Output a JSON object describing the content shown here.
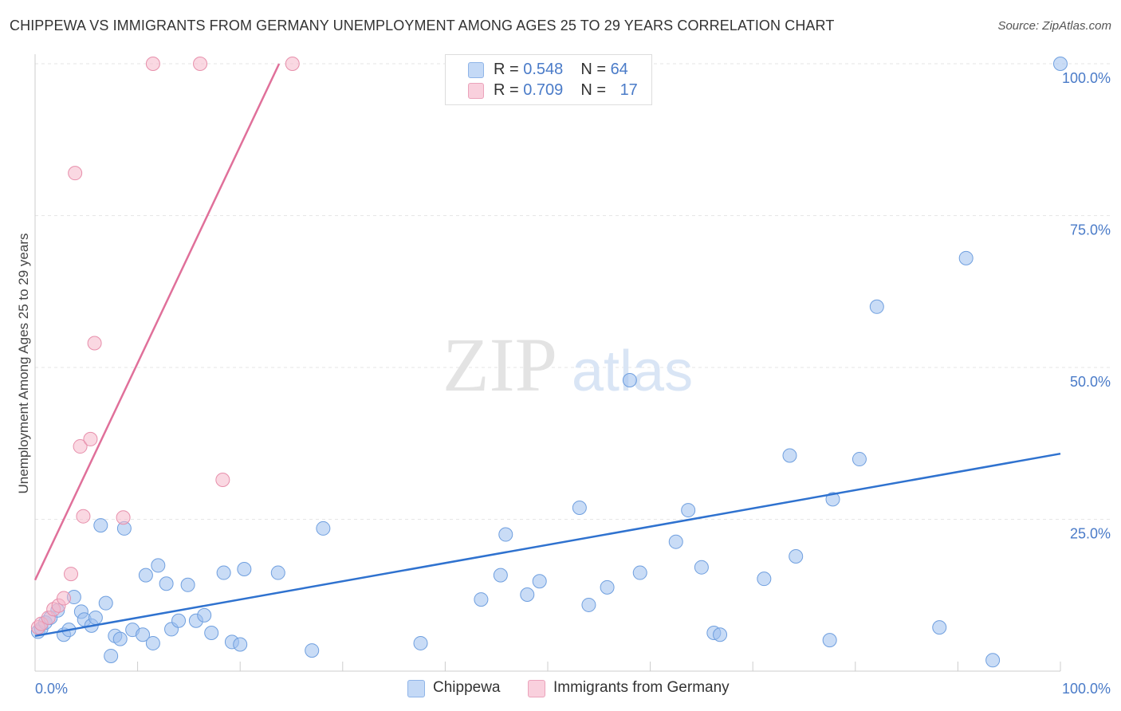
{
  "header": {
    "title": "CHIPPEWA VS IMMIGRANTS FROM GERMANY UNEMPLOYMENT AMONG AGES 25 TO 29 YEARS CORRELATION CHART",
    "source": "Source: ZipAtlas.com"
  },
  "watermark": {
    "zip": "ZIP",
    "atlas": "atlas"
  },
  "legend": {
    "rows": [
      {
        "r_label": "R = ",
        "r_value": "0.548",
        "n_label": "N = ",
        "n_value": "64",
        "color": "#9cc0ee"
      },
      {
        "r_label": "R = ",
        "r_value": "0.709",
        "n_label": "N = ",
        "n_value": "17",
        "color": "#f5b8cb"
      }
    ]
  },
  "bottom_legend": {
    "series_a": "Chippewa",
    "series_b": "Immigrants from Germany"
  },
  "chart_data": {
    "type": "scatter",
    "title": "CHIPPEWA VS IMMIGRANTS FROM GERMANY UNEMPLOYMENT AMONG AGES 25 TO 29 YEARS CORRELATION CHART",
    "xlabel": "",
    "ylabel": "Unemployment Among Ages 25 to 29 years",
    "xlim": [
      0,
      100
    ],
    "ylim": [
      0,
      100
    ],
    "x_tick_labels": [
      "0.0%",
      "100.0%"
    ],
    "y_ticks": [
      {
        "value": 100,
        "label": "100.0%"
      },
      {
        "value": 75,
        "label": "75.0%"
      },
      {
        "value": 50,
        "label": "50.0%"
      },
      {
        "value": 25,
        "label": "25.0%"
      }
    ],
    "series": [
      {
        "name": "Chippewa",
        "color": "#9cc0ee",
        "stroke": "#6f9fdf",
        "trend_color": "#2f72cf",
        "trend": {
          "x": [
            0,
            100
          ],
          "y": [
            5.8,
            35.8
          ]
        },
        "points": [
          [
            0.3,
            6.5
          ],
          [
            0.6,
            7.0
          ],
          [
            1.0,
            8.0
          ],
          [
            1.5,
            8.8
          ],
          [
            2.2,
            10.0
          ],
          [
            2.8,
            6.0
          ],
          [
            3.3,
            6.8
          ],
          [
            3.8,
            12.2
          ],
          [
            4.5,
            9.8
          ],
          [
            4.8,
            8.5
          ],
          [
            5.5,
            7.5
          ],
          [
            5.9,
            8.8
          ],
          [
            6.4,
            24.0
          ],
          [
            6.9,
            11.2
          ],
          [
            7.4,
            2.5
          ],
          [
            7.8,
            5.8
          ],
          [
            8.3,
            5.3
          ],
          [
            8.7,
            23.5
          ],
          [
            9.5,
            6.8
          ],
          [
            10.5,
            6.0
          ],
          [
            10.8,
            15.8
          ],
          [
            11.5,
            4.6
          ],
          [
            12.0,
            17.4
          ],
          [
            12.8,
            14.4
          ],
          [
            13.3,
            6.9
          ],
          [
            14.0,
            8.3
          ],
          [
            14.9,
            14.2
          ],
          [
            15.7,
            8.3
          ],
          [
            16.5,
            9.2
          ],
          [
            17.2,
            6.3
          ],
          [
            18.4,
            16.2
          ],
          [
            19.2,
            4.8
          ],
          [
            20.0,
            4.4
          ],
          [
            20.4,
            16.8
          ],
          [
            23.7,
            16.2
          ],
          [
            27.0,
            3.4
          ],
          [
            28.1,
            23.5
          ],
          [
            37.6,
            4.6
          ],
          [
            43.5,
            11.8
          ],
          [
            45.4,
            15.8
          ],
          [
            45.9,
            22.5
          ],
          [
            48.0,
            12.6
          ],
          [
            49.2,
            14.8
          ],
          [
            53.1,
            26.9
          ],
          [
            54.0,
            10.9
          ],
          [
            55.8,
            13.8
          ],
          [
            58.0,
            47.9
          ],
          [
            59.0,
            16.2
          ],
          [
            62.5,
            21.3
          ],
          [
            63.7,
            26.5
          ],
          [
            65.0,
            17.1
          ],
          [
            66.2,
            6.3
          ],
          [
            66.8,
            6.0
          ],
          [
            71.1,
            15.2
          ],
          [
            73.6,
            35.5
          ],
          [
            74.2,
            18.9
          ],
          [
            77.5,
            5.1
          ],
          [
            77.8,
            28.3
          ],
          [
            80.4,
            34.9
          ],
          [
            82.1,
            60.0
          ],
          [
            88.2,
            7.2
          ],
          [
            90.8,
            68.0
          ],
          [
            93.4,
            1.8
          ],
          [
            100.0,
            100.0
          ]
        ]
      },
      {
        "name": "Immigrants from Germany",
        "color": "#f5b8cb",
        "stroke": "#e78fab",
        "trend_color": "#e0709a",
        "trend": {
          "x": [
            0,
            23.8
          ],
          "y": [
            15.0,
            100.0
          ]
        },
        "points": [
          [
            0.3,
            7.2
          ],
          [
            0.6,
            7.8
          ],
          [
            1.3,
            8.8
          ],
          [
            1.8,
            10.2
          ],
          [
            2.3,
            10.8
          ],
          [
            2.8,
            12.0
          ],
          [
            3.5,
            16.0
          ],
          [
            3.9,
            82.0
          ],
          [
            4.4,
            37.0
          ],
          [
            4.7,
            25.5
          ],
          [
            5.4,
            38.2
          ],
          [
            5.8,
            54.0
          ],
          [
            8.6,
            25.3
          ],
          [
            11.5,
            100.0
          ],
          [
            16.1,
            100.0
          ],
          [
            18.3,
            31.5
          ],
          [
            25.1,
            100.0
          ]
        ]
      }
    ]
  }
}
